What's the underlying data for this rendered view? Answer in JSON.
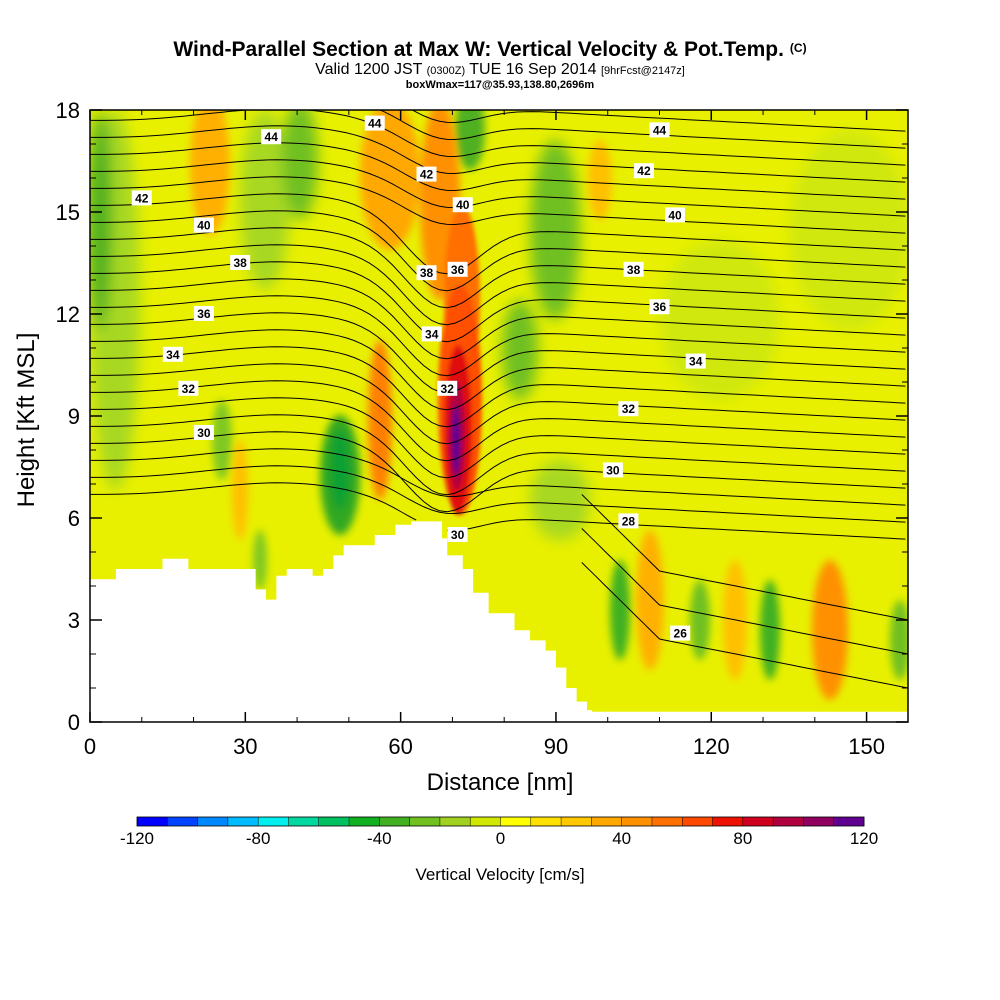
{
  "chart_data": {
    "type": "heatmap",
    "title": "Wind-Parallel Section at Max W: Vertical Velocity & Pot.Temp.",
    "title_mark": "(C)",
    "subtitle": {
      "prefix": "Valid 1200 JST",
      "utc": "(0300Z)",
      "date": "TUE 16 Sep 2014",
      "forecast": "[9hrFcst@2147z]"
    },
    "note": "boxWmax=117@35.93,138.80,2696m",
    "xlabel": "Distance [nm]",
    "ylabel": "Height [Kft MSL]",
    "xlim": [
      0,
      158
    ],
    "ylim": [
      0,
      18
    ],
    "x_ticks": [
      0,
      30,
      60,
      90,
      120,
      150
    ],
    "y_ticks": [
      0,
      3,
      6,
      9,
      12,
      15,
      18
    ],
    "colorbar": {
      "label": "Vertical Velocity [cm/s]",
      "range": [
        -120,
        120
      ],
      "step": 10,
      "tick_labels": [
        "-120",
        "-80",
        "-40",
        "0",
        "40",
        "80",
        "120"
      ],
      "colors": [
        "#0000ff",
        "#0044ff",
        "#0088ff",
        "#00bbff",
        "#00eeee",
        "#00d8a0",
        "#00c060",
        "#10b020",
        "#40b020",
        "#70c020",
        "#a0d020",
        "#d0e800",
        "#ffff00",
        "#ffe000",
        "#ffc800",
        "#ffa800",
        "#ff9000",
        "#ff7000",
        "#ff4800",
        "#ee1000",
        "#d00020",
        "#b00040",
        "#900060",
        "#600090"
      ]
    },
    "contour_labels": [
      "26",
      "28",
      "30",
      "32",
      "34",
      "36",
      "38",
      "40",
      "42",
      "44"
    ],
    "series": [
      {
        "name": "Terrain (Kft MSL)",
        "x": [
          0,
          5,
          10,
          14,
          19,
          30,
          32,
          34,
          36,
          38,
          40,
          43,
          45,
          47,
          49,
          53,
          55,
          59,
          62,
          66,
          68,
          69,
          72,
          74,
          77,
          82,
          85,
          88,
          90,
          92,
          94,
          96,
          97,
          100,
          158
        ],
        "height": [
          4.2,
          4.5,
          4.5,
          4.8,
          4.5,
          4.5,
          3.9,
          3.6,
          4.3,
          4.5,
          4.5,
          4.3,
          4.5,
          4.9,
          5.2,
          5.2,
          5.5,
          5.8,
          5.9,
          5.9,
          5.4,
          4.9,
          4.5,
          3.8,
          3.2,
          2.7,
          2.4,
          2.1,
          1.6,
          1.0,
          0.6,
          0.35,
          0.3,
          0.3,
          0.3
        ]
      },
      {
        "name": "Max vertical velocity core (cm/s)",
        "x": [
          71
        ],
        "height": [
          8.5
        ],
        "values": [
          117
        ]
      }
    ]
  }
}
